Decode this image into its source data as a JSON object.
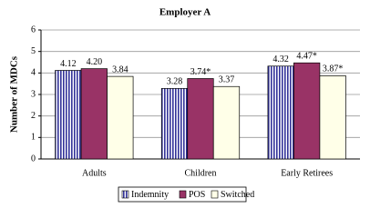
{
  "chart_data": {
    "type": "bar",
    "title": "Employer A",
    "y_label": "Number of MDCs",
    "categories": [
      "Adults",
      "Children",
      "Early Retirees"
    ],
    "series": [
      {
        "name": "Indemnity",
        "color": "#333399",
        "pattern": "vertical-stripes",
        "values": [
          4.12,
          3.28,
          4.32
        ],
        "value_labels": [
          "4.12",
          "3.28",
          "4.32"
        ]
      },
      {
        "name": "POS",
        "color": "#993366",
        "values": [
          4.2,
          3.74,
          4.47
        ],
        "value_labels": [
          "4.20",
          "3.74*",
          "4.47*"
        ]
      },
      {
        "name": "Switched",
        "color": "#FFFFE8",
        "values": [
          3.84,
          3.37,
          3.87
        ],
        "value_labels": [
          "3.84",
          "3.37",
          "3.87*"
        ]
      }
    ],
    "ylim": [
      0,
      6
    ],
    "yticks": [
      0,
      1,
      2,
      3,
      4,
      5,
      6
    ],
    "grid": true,
    "legend": "bottom"
  }
}
